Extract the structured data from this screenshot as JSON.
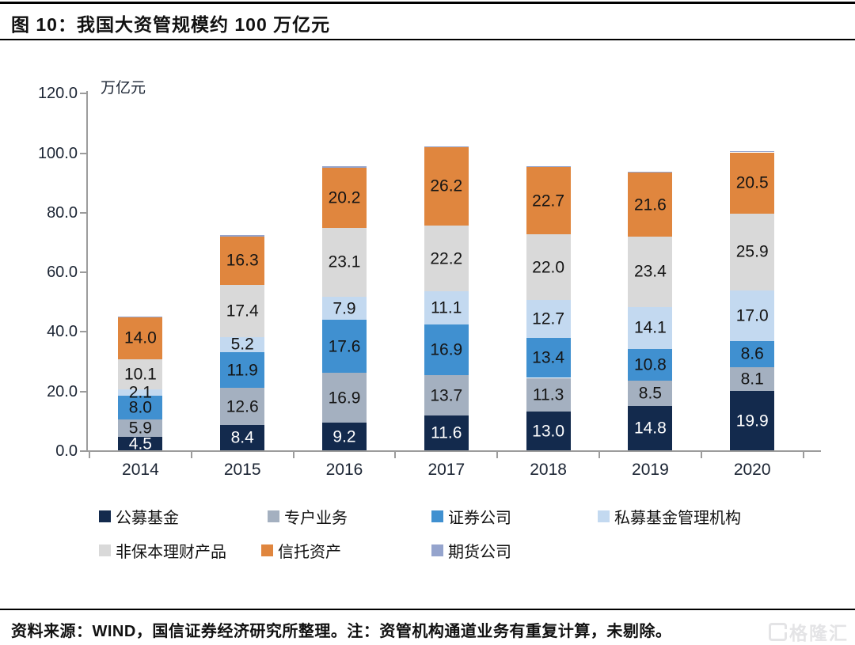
{
  "header": {
    "title": "图 10：我国大资管规模约 100 万亿元"
  },
  "chart_data": {
    "type": "bar",
    "stacked": true,
    "title": "我国大资管规模约 100 万亿元",
    "unit_label": "万亿元",
    "xlabel": "",
    "ylabel": "万亿元",
    "ylim": [
      0,
      120
    ],
    "ytick_step": 20,
    "yticks": [
      "0.0",
      "20.0",
      "40.0",
      "60.0",
      "80.0",
      "100.0",
      "120.0"
    ],
    "grid": false,
    "legend_position": "bottom",
    "categories": [
      "2014",
      "2015",
      "2016",
      "2017",
      "2018",
      "2019",
      "2020"
    ],
    "series": [
      {
        "name": "公募基金",
        "color": "#132a4d",
        "label_color": "#ffffff",
        "labels_visible": true,
        "values": [
          4.5,
          8.4,
          9.2,
          11.6,
          13.0,
          14.8,
          19.9
        ]
      },
      {
        "name": "专户业务",
        "color": "#a4b0c0",
        "label_color": "#141414",
        "labels_visible": true,
        "values": [
          5.9,
          12.6,
          16.9,
          13.7,
          11.3,
          8.5,
          8.1
        ]
      },
      {
        "name": "证券公司",
        "color": "#4090d0",
        "label_color": "#141414",
        "labels_visible": true,
        "values": [
          8.0,
          11.9,
          17.6,
          16.9,
          13.4,
          10.8,
          8.6
        ]
      },
      {
        "name": "私募基金管理机构",
        "color": "#c3d9f0",
        "label_color": "#141414",
        "labels_visible": true,
        "values": [
          2.1,
          5.2,
          7.9,
          11.1,
          12.7,
          14.1,
          17.0
        ]
      },
      {
        "name": "非保本理财产品",
        "color": "#d9d9d9",
        "label_color": "#141414",
        "labels_visible": true,
        "values": [
          10.1,
          17.4,
          23.1,
          22.2,
          22.0,
          23.4,
          25.9
        ]
      },
      {
        "name": "信托资产",
        "color": "#e0863e",
        "label_color": "#141414",
        "labels_visible": true,
        "values": [
          14.0,
          16.3,
          20.2,
          26.2,
          22.7,
          21.6,
          20.5
        ]
      },
      {
        "name": "期货公司",
        "color": "#95a4cd",
        "label_color": "#141414",
        "labels_visible": false,
        "approx": true,
        "values": [
          0.4,
          0.4,
          0.4,
          0.4,
          0.3,
          0.3,
          0.3
        ]
      }
    ],
    "legend_rows": [
      [
        0,
        1,
        2,
        3
      ],
      [
        4,
        5,
        6
      ]
    ]
  },
  "footer": {
    "source_note": "资料来源：WIND，国信证券经济研究所整理。注：资管机构通道业务有重复计算，未剔除。",
    "watermark": "格隆汇"
  }
}
